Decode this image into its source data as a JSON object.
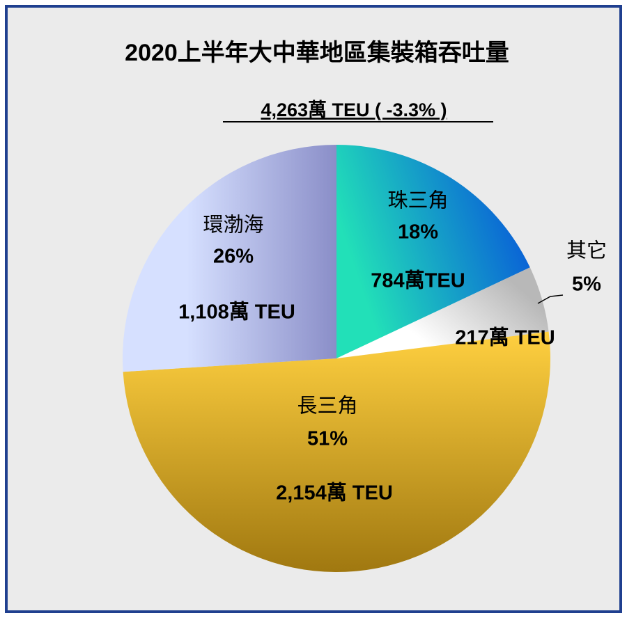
{
  "chart_data": {
    "type": "pie",
    "title": "2020上半年大中華地區集裝箱吞吐量",
    "subtitle": "4,263萬 TEU ( -3.3% )",
    "categories": [
      "珠三角",
      "其它",
      "長三角",
      "環渤海"
    ],
    "values": [
      18,
      5,
      51,
      26
    ],
    "value_labels": [
      "18%",
      "5%",
      "51%",
      "26%"
    ],
    "amount_labels": [
      "784萬TEU",
      "217萬 TEU",
      "2,154萬 TEU",
      "1,108萬 TEU"
    ],
    "colors": [
      [
        "#22e0b8",
        "#0a64d6"
      ],
      [
        "#ffffff",
        "#b8b8b8"
      ],
      [
        "#ffd040",
        "#a07810"
      ],
      [
        "#d6e0ff",
        "#8a8ec8"
      ]
    ]
  }
}
